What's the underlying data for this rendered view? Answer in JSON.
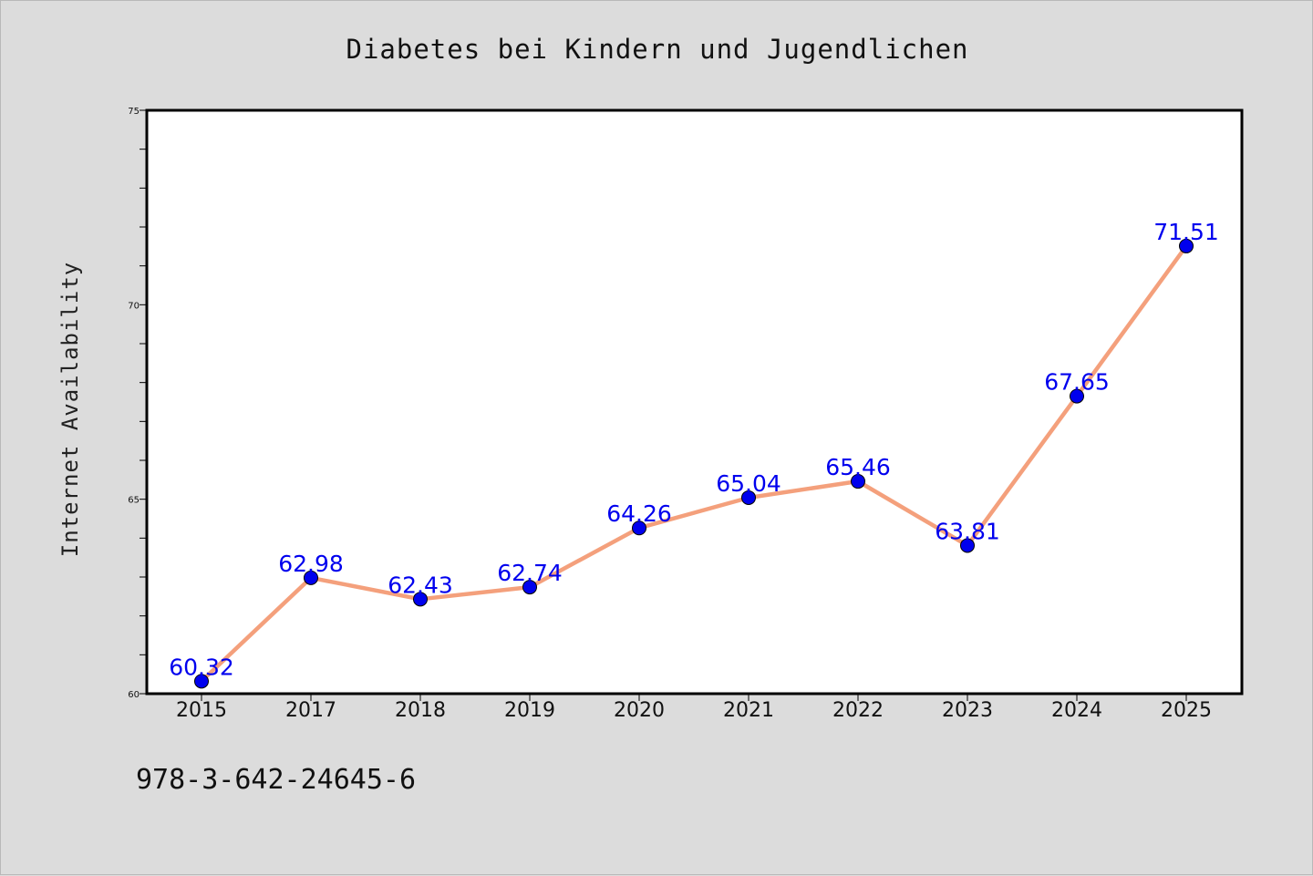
{
  "chart_data": {
    "type": "line",
    "title": "Diabetes bei Kindern und Jugendlichen",
    "ylabel": "Internet Availability",
    "xlabel": "",
    "categories": [
      "2015",
      "2017",
      "2018",
      "2019",
      "2020",
      "2021",
      "2022",
      "2023",
      "2024",
      "2025"
    ],
    "series": [
      {
        "values": [
          60.32,
          62.98,
          62.43,
          62.74,
          64.26,
          65.04,
          65.46,
          63.81,
          67.65,
          71.51
        ],
        "labels": [
          "60.32",
          "62.98",
          "62.43",
          "62.74",
          "64.26",
          "65.04",
          "65.46",
          "63.81",
          "67.65",
          "71.51"
        ],
        "line_color": "#f4a07c",
        "marker_color": "#0000ee"
      }
    ],
    "ylim": [
      60,
      75
    ],
    "yticks": [
      "60",
      "65",
      "70",
      "75"
    ],
    "grid": false,
    "legend": "none"
  },
  "footer": {
    "isbn": "978-3-642-24645-6"
  }
}
